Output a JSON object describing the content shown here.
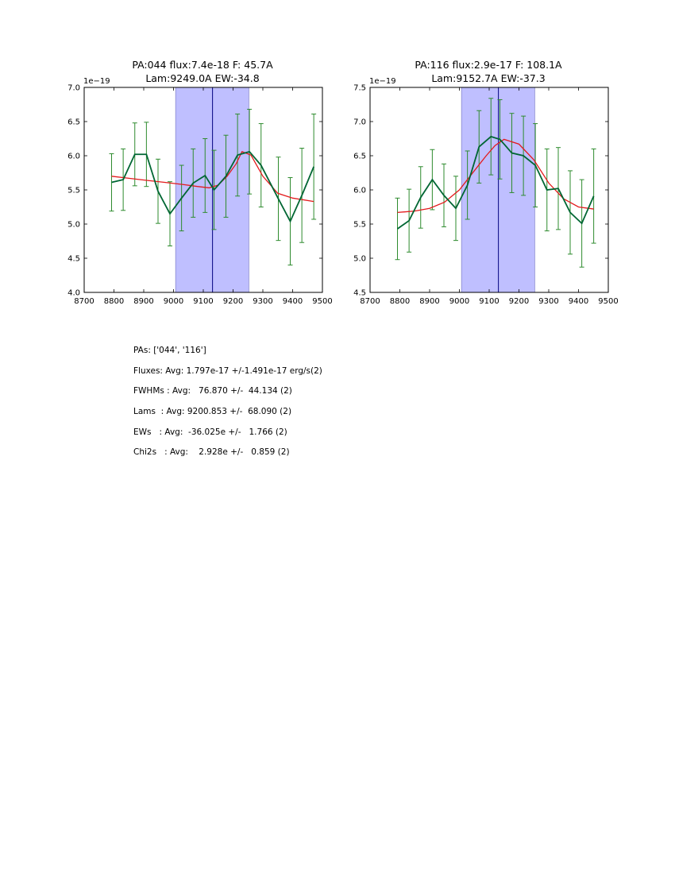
{
  "chart_data": [
    {
      "type": "line",
      "title_line1": "PA:044 flux:7.4e-18 F: 45.7A",
      "title_line2": "Lam:9249.0A EW:-34.8",
      "offset_label": "1e−19",
      "xlim": [
        8700,
        9500
      ],
      "ylim": [
        4.0,
        7.0
      ],
      "xticks": [
        8700,
        8800,
        8900,
        9000,
        9100,
        9200,
        9300,
        9400,
        9500
      ],
      "yticks": [
        "4.0",
        "4.5",
        "5.0",
        "5.5",
        "6.0",
        "6.5",
        "7.0"
      ],
      "shade_range": [
        9007,
        9253
      ],
      "vline_x": 9131,
      "colors": {
        "data": "#006633",
        "errorbar": "#2e8b2e",
        "model": "#e31a1c",
        "shade": "#bfbfff",
        "vline": "#000080"
      },
      "series": [
        {
          "x": [
            8792,
            8831,
            8870,
            8909,
            8948,
            8988,
            9027,
            9066,
            9106,
            9136,
            9176,
            9215,
            9255,
            9294,
            9352,
            9392,
            9431,
            9471
          ],
          "y": [
            5.61,
            5.65,
            6.02,
            6.02,
            5.48,
            5.15,
            5.38,
            5.6,
            5.71,
            5.5,
            5.7,
            6.01,
            6.06,
            5.86,
            5.37,
            5.04,
            5.42,
            5.84
          ],
          "yerr": [
            0.42,
            0.45,
            0.46,
            0.47,
            0.47,
            0.47,
            0.48,
            0.5,
            0.54,
            0.58,
            0.6,
            0.6,
            0.62,
            0.61,
            0.61,
            0.64,
            0.69,
            0.77
          ]
        },
        {
          "x": [
            8792,
            8850,
            8910,
            8970,
            9030,
            9080,
            9120,
            9150,
            9180,
            9210,
            9230,
            9260,
            9300,
            9350,
            9400,
            9471
          ],
          "y": [
            5.7,
            5.67,
            5.64,
            5.61,
            5.58,
            5.55,
            5.53,
            5.57,
            5.7,
            5.88,
            6.06,
            6.01,
            5.7,
            5.45,
            5.38,
            5.33
          ]
        }
      ]
    },
    {
      "type": "line",
      "title_line1": "PA:116 flux:2.9e-17 F: 108.1A",
      "title_line2": "Lam:9152.7A EW:-37.3",
      "offset_label": "1e−19",
      "xlim": [
        8700,
        9500
      ],
      "ylim": [
        4.5,
        7.5
      ],
      "xticks": [
        8700,
        8800,
        8900,
        9000,
        9100,
        9200,
        9300,
        9400,
        9500
      ],
      "yticks": [
        "4.5",
        "5.0",
        "5.5",
        "6.0",
        "6.5",
        "7.0",
        "7.5"
      ],
      "shade_range": [
        9007,
        9253
      ],
      "vline_x": 9131,
      "colors": {
        "data": "#006633",
        "errorbar": "#2e8b2e",
        "model": "#e31a1c",
        "shade": "#bfbfff",
        "vline": "#000080"
      },
      "series": [
        {
          "x": [
            8792,
            8831,
            8870,
            8909,
            8948,
            8988,
            9027,
            9066,
            9106,
            9136,
            9176,
            9215,
            9255,
            9294,
            9332,
            9372,
            9411,
            9451
          ],
          "y": [
            5.43,
            5.55,
            5.89,
            6.15,
            5.92,
            5.73,
            6.07,
            6.63,
            6.78,
            6.74,
            6.54,
            6.5,
            6.36,
            6.0,
            6.02,
            5.67,
            5.51,
            5.91
          ],
          "yerr": [
            0.45,
            0.46,
            0.45,
            0.44,
            0.46,
            0.47,
            0.5,
            0.53,
            0.56,
            0.58,
            0.58,
            0.58,
            0.61,
            0.6,
            0.6,
            0.61,
            0.64,
            0.69
          ]
        },
        {
          "x": [
            8792,
            8850,
            8900,
            8950,
            9000,
            9050,
            9090,
            9120,
            9150,
            9200,
            9250,
            9300,
            9350,
            9400,
            9451
          ],
          "y": [
            5.67,
            5.69,
            5.73,
            5.82,
            6.0,
            6.28,
            6.5,
            6.65,
            6.74,
            6.67,
            6.44,
            6.1,
            5.87,
            5.75,
            5.72
          ]
        }
      ]
    }
  ],
  "stats": {
    "pas": "PAs: ['044', '116']",
    "fluxes": "Fluxes: Avg: 1.797e-17 +/-1.491e-17 erg/s(2)",
    "fwhms": "FWHMs : Avg:   76.870 +/-  44.134 (2)",
    "lams": "Lams  : Avg: 9200.853 +/-  68.090 (2)",
    "ews": "EWs   : Avg:  -36.025e +/-   1.766 (2)",
    "chi2s": "Chi2s   : Avg:    2.928e +/-   0.859 (2)"
  }
}
